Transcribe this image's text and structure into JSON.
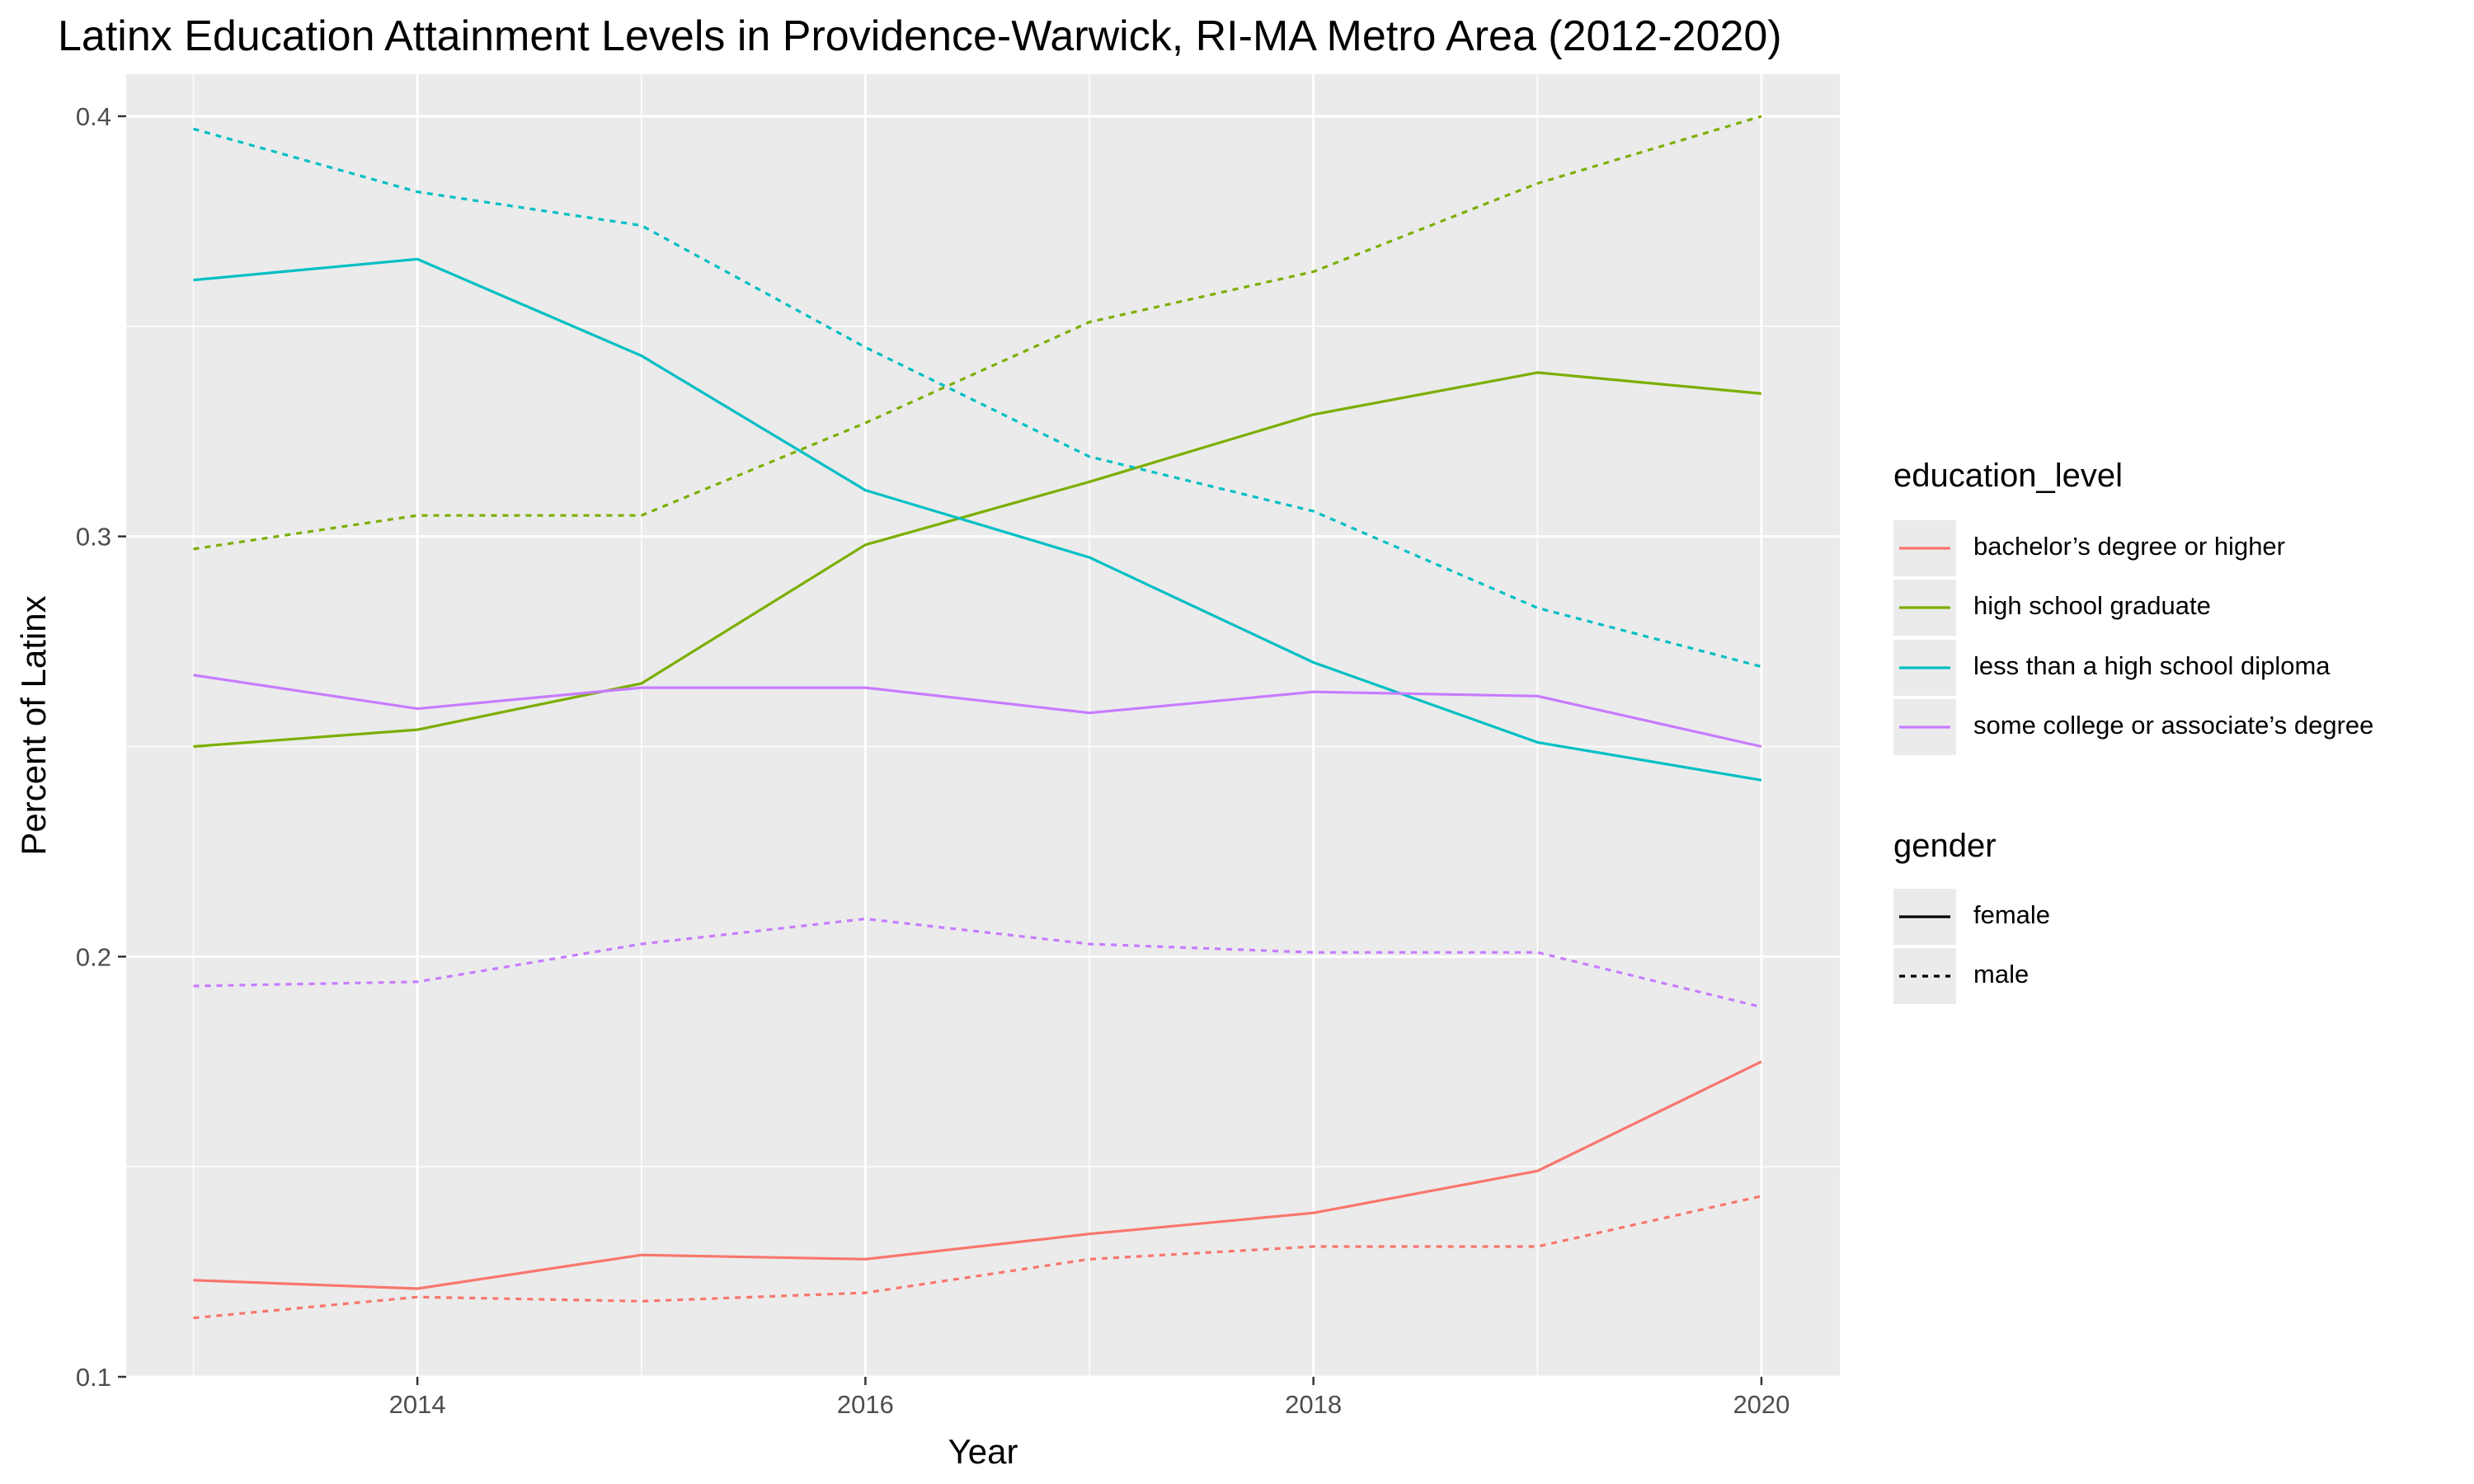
{
  "chart_data": {
    "type": "line",
    "title": "Latinx Education Attainment Levels in Providence-Warwick, RI-MA Metro Area (2012-2020)",
    "xlabel": "Year",
    "ylabel": "Percent of Latinx",
    "xlim": [
      2012.7,
      2020.35
    ],
    "ylim": [
      0.1,
      0.41
    ],
    "x_ticks": [
      2014,
      2016,
      2018,
      2020
    ],
    "y_ticks": [
      0.1,
      0.2,
      0.3,
      0.4
    ],
    "y_tick_labels": [
      "0.1",
      "0.2",
      "0.3",
      "0.4"
    ],
    "grid": true,
    "legend_position": "right",
    "x": [
      2013,
      2014,
      2015,
      2016,
      2017,
      2018,
      2019,
      2020
    ],
    "series": [
      {
        "education_level": "bachelor's degree or higher",
        "gender": "female",
        "values": [
          0.123,
          0.121,
          0.129,
          0.128,
          0.134,
          0.139,
          0.149,
          0.175
        ]
      },
      {
        "education_level": "bachelor's degree or higher",
        "gender": "male",
        "values": [
          0.114,
          0.119,
          0.118,
          0.12,
          0.128,
          0.131,
          0.131,
          0.143
        ]
      },
      {
        "education_level": "high school graduate",
        "gender": "female",
        "values": [
          0.25,
          0.254,
          0.265,
          0.298,
          0.313,
          0.329,
          0.339,
          0.334
        ]
      },
      {
        "education_level": "high school graduate",
        "gender": "male",
        "values": [
          0.297,
          0.305,
          0.305,
          0.327,
          0.351,
          0.363,
          0.384,
          0.4
        ]
      },
      {
        "education_level": "less than a high school diploma",
        "gender": "female",
        "values": [
          0.361,
          0.366,
          0.343,
          0.311,
          0.295,
          0.27,
          0.251,
          0.242
        ]
      },
      {
        "education_level": "less than a high school diploma",
        "gender": "male",
        "values": [
          0.397,
          0.382,
          0.374,
          0.345,
          0.319,
          0.306,
          0.283,
          0.269
        ]
      },
      {
        "education_level": "some college or associate's degree",
        "gender": "female",
        "values": [
          0.267,
          0.259,
          0.264,
          0.264,
          0.258,
          0.263,
          0.262,
          0.25
        ]
      },
      {
        "education_level": "some college or associate's degree",
        "gender": "male",
        "values": [
          0.193,
          0.194,
          0.203,
          0.209,
          0.203,
          0.201,
          0.201,
          0.188
        ]
      }
    ],
    "legend": {
      "color_title": "education_level",
      "color_items": [
        {
          "label": "bachelor’s degree or higher",
          "color": "#F8766D"
        },
        {
          "label": "high school graduate",
          "color": "#7CAE00"
        },
        {
          "label": "less than a high school diploma",
          "color": "#00BFC4"
        },
        {
          "label": "some college or associate’s degree",
          "color": "#C77CFF"
        }
      ],
      "linetype_title": "gender",
      "linetype_items": [
        {
          "label": "female",
          "style": "solid"
        },
        {
          "label": "male",
          "style": "dotted"
        }
      ]
    },
    "colors": {
      "bachelor's degree or higher": "#F8766D",
      "high school graduate": "#7CAE00",
      "less than a high school diploma": "#00BFC4",
      "some college or associate's degree": "#C77CFF",
      "panel_background": "#ebebeb",
      "grid": "#ffffff"
    }
  }
}
